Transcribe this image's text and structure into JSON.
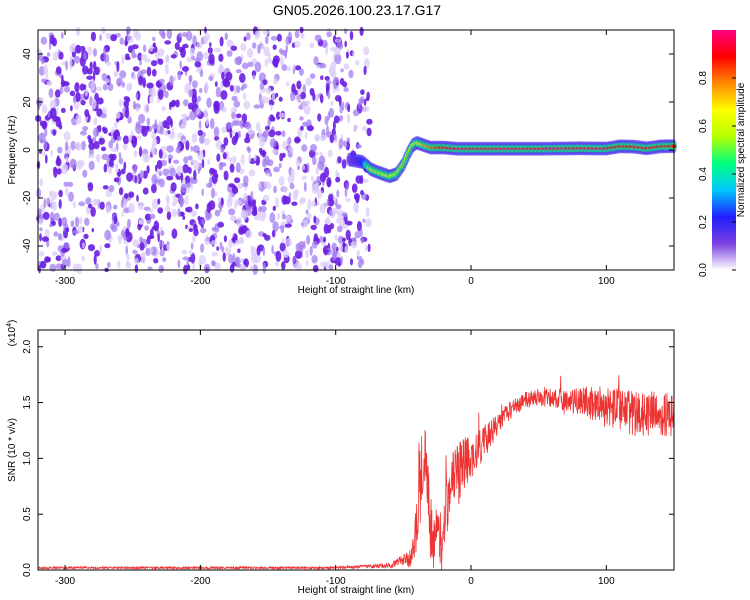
{
  "figure": {
    "title": "GN05.2026.100.23.17.G17"
  },
  "chart_data": [
    {
      "type": "heatmap",
      "title": "GN05.2026.100.23.17.G17",
      "xlabel": "Height of straight line (km)",
      "ylabel": "Frequency (Hz)",
      "xlim": [
        -320,
        150
      ],
      "ylim": [
        -50,
        50
      ],
      "xticks": [
        -300,
        -200,
        -100,
        0,
        100
      ],
      "xtick_labels": [
        "-300",
        "-200",
        "-100",
        "0",
        "100"
      ],
      "yticks": [
        -40,
        -20,
        0,
        20,
        40
      ],
      "ytick_labels": [
        "-40",
        "-20",
        "0",
        "20",
        "40"
      ],
      "grid": false,
      "noise_region_x": [
        -320,
        -75
      ],
      "signal_track": {
        "x": [
          -90,
          -80,
          -74,
          -70,
          -65,
          -60,
          -55,
          -50,
          -46,
          -43,
          -40,
          -35,
          -30,
          -20,
          -10,
          0,
          20,
          50,
          80,
          100,
          110,
          120,
          130,
          140,
          150
        ],
        "freq": [
          -4,
          -5,
          -8,
          -9,
          -10,
          -11,
          -10,
          -6,
          -1,
          2,
          3,
          2,
          1,
          1,
          0.5,
          0.5,
          0.5,
          0.5,
          0.7,
          0.6,
          1.5,
          1.4,
          0.7,
          1.5,
          1.6
        ],
        "amplitude": [
          0.1,
          0.2,
          0.6,
          0.55,
          0.65,
          0.7,
          0.6,
          0.55,
          0.6,
          0.65,
          0.6,
          0.75,
          0.8,
          0.9,
          0.95,
          0.95,
          0.95,
          0.95,
          0.95,
          0.95,
          0.9,
          0.9,
          0.9,
          0.9,
          0.9
        ]
      },
      "colorbar": {
        "label": "Normalized spectral amplitude",
        "range": [
          0,
          1
        ],
        "ticks": [
          0.0,
          0.2,
          0.4,
          0.6,
          0.8
        ],
        "tick_labels": [
          "0.0",
          "0.2",
          "0.4",
          "0.6",
          "0.8"
        ],
        "colormap": [
          "#ffffff",
          "#7a3fe0",
          "#1f1fff",
          "#00c8ff",
          "#00ff80",
          "#b5ff00",
          "#ffff00",
          "#ff8800",
          "#ff0000",
          "#ff0080"
        ]
      }
    },
    {
      "type": "line",
      "xlabel": "Height of straight line (km)",
      "ylabel": "SNR (10 * v/v)",
      "scale_label": "(x10",
      "scale_exp": "4",
      "scale_close": ")",
      "xlim": [
        -320,
        150
      ],
      "ylim": [
        0,
        2.15
      ],
      "xticks": [
        -300,
        -200,
        -100,
        0,
        100
      ],
      "xtick_labels": [
        "-300",
        "-200",
        "-100",
        "0",
        "100"
      ],
      "yticks": [
        0.0,
        0.5,
        1.0,
        1.5,
        2.0
      ],
      "ytick_labels": [
        "0.0",
        "0.5",
        "1.0",
        "1.5",
        "2.0"
      ],
      "grid": false,
      "color": "#ee3333",
      "series": [
        {
          "x": [
            -320,
            -100,
            -60,
            -45,
            -40,
            -38,
            -35,
            -32,
            -30,
            -28,
            -25,
            -22,
            -20,
            -15,
            -10,
            -5,
            0,
            10,
            20,
            30,
            40,
            50,
            60,
            70,
            80,
            90,
            100,
            110,
            120,
            130,
            140,
            150
          ],
          "mean": [
            0.02,
            0.02,
            0.04,
            0.1,
            0.4,
            0.7,
            1.0,
            0.9,
            0.4,
            0.2,
            0.35,
            0.2,
            0.5,
            0.75,
            0.85,
            0.95,
            1.0,
            1.15,
            1.3,
            1.45,
            1.52,
            1.55,
            1.55,
            1.5,
            1.5,
            1.5,
            1.45,
            1.45,
            1.4,
            1.4,
            1.4,
            1.4
          ],
          "spread": [
            0.01,
            0.01,
            0.02,
            0.08,
            0.3,
            0.35,
            0.35,
            0.35,
            0.3,
            0.25,
            0.3,
            0.3,
            0.3,
            0.3,
            0.3,
            0.25,
            0.2,
            0.15,
            0.1,
            0.08,
            0.08,
            0.08,
            0.1,
            0.12,
            0.14,
            0.16,
            0.18,
            0.2,
            0.2,
            0.2,
            0.2,
            0.2
          ]
        }
      ]
    }
  ]
}
